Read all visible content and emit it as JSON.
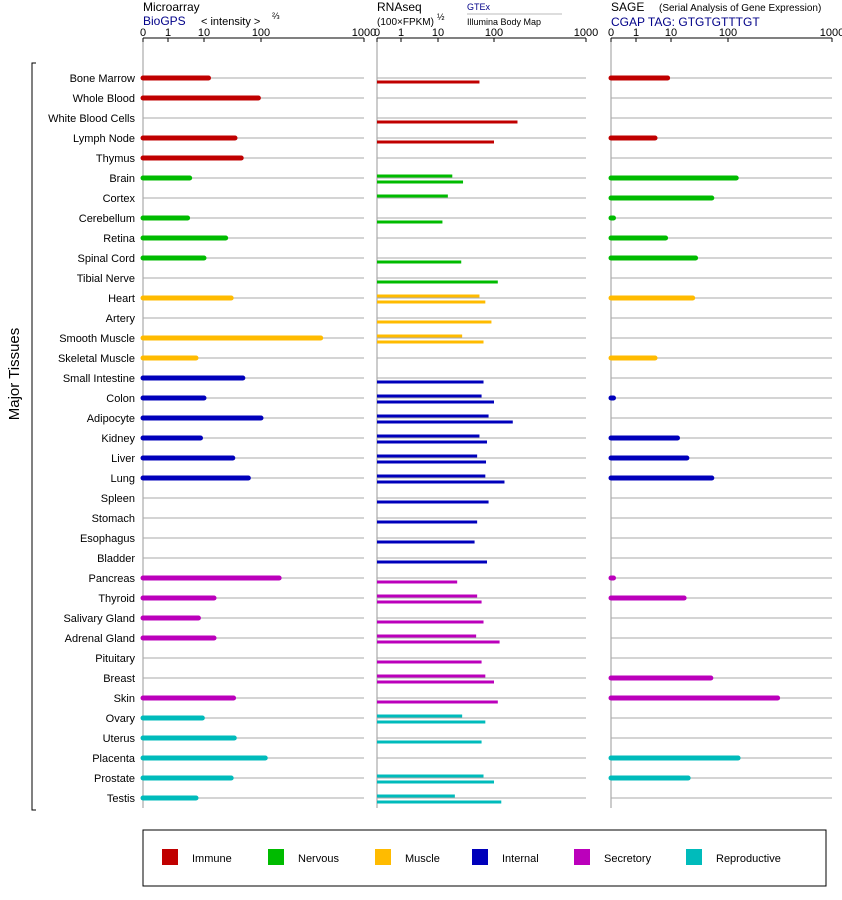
{
  "chart_data": {
    "type": "bar",
    "y_axis_label": "Major Tissues",
    "tissues": [
      {
        "name": "Bone Marrow",
        "group": "immune"
      },
      {
        "name": "Whole Blood",
        "group": "immune"
      },
      {
        "name": "White Blood Cells",
        "group": "immune"
      },
      {
        "name": "Lymph Node",
        "group": "immune"
      },
      {
        "name": "Thymus",
        "group": "immune"
      },
      {
        "name": "Brain",
        "group": "nervous"
      },
      {
        "name": "Cortex",
        "group": "nervous"
      },
      {
        "name": "Cerebellum",
        "group": "nervous"
      },
      {
        "name": "Retina",
        "group": "nervous"
      },
      {
        "name": "Spinal Cord",
        "group": "nervous"
      },
      {
        "name": "Tibial Nerve",
        "group": "nervous"
      },
      {
        "name": "Heart",
        "group": "muscle"
      },
      {
        "name": "Artery",
        "group": "muscle"
      },
      {
        "name": "Smooth Muscle",
        "group": "muscle"
      },
      {
        "name": "Skeletal Muscle",
        "group": "muscle"
      },
      {
        "name": "Small Intestine",
        "group": "internal"
      },
      {
        "name": "Colon",
        "group": "internal"
      },
      {
        "name": "Adipocyte",
        "group": "internal"
      },
      {
        "name": "Kidney",
        "group": "internal"
      },
      {
        "name": "Liver",
        "group": "internal"
      },
      {
        "name": "Lung",
        "group": "internal"
      },
      {
        "name": "Spleen",
        "group": "internal"
      },
      {
        "name": "Stomach",
        "group": "internal"
      },
      {
        "name": "Esophagus",
        "group": "internal"
      },
      {
        "name": "Bladder",
        "group": "internal"
      },
      {
        "name": "Pancreas",
        "group": "secretory"
      },
      {
        "name": "Thyroid",
        "group": "secretory"
      },
      {
        "name": "Salivary Gland",
        "group": "secretory"
      },
      {
        "name": "Adrenal Gland",
        "group": "secretory"
      },
      {
        "name": "Pituitary",
        "group": "secretory"
      },
      {
        "name": "Breast",
        "group": "secretory"
      },
      {
        "name": "Skin",
        "group": "secretory"
      },
      {
        "name": "Ovary",
        "group": "reproductive"
      },
      {
        "name": "Uterus",
        "group": "reproductive"
      },
      {
        "name": "Placenta",
        "group": "reproductive"
      },
      {
        "name": "Prostate",
        "group": "reproductive"
      },
      {
        "name": "Testis",
        "group": "reproductive"
      }
    ],
    "colors": {
      "immune": "#c00000",
      "nervous": "#00bb00",
      "muscle": "#ffbb00",
      "internal": "#0000bb",
      "secretory": "#bb00bb",
      "reproductive": "#00bbbb"
    },
    "legend": [
      {
        "key": "immune",
        "label": "Immune"
      },
      {
        "key": "nervous",
        "label": "Nervous"
      },
      {
        "key": "muscle",
        "label": "Muscle"
      },
      {
        "key": "internal",
        "label": "Internal"
      },
      {
        "key": "secretory",
        "label": "Secretory"
      },
      {
        "key": "reproductive",
        "label": "Reproductive"
      }
    ],
    "panels": [
      {
        "id": "microarray",
        "title": "Microarray",
        "subtitle": "BioGPS",
        "scale_label": "< intensity >",
        "scale_exponent": "⅔",
        "ticks": [
          0,
          1,
          10,
          100,
          1000
        ],
        "xlim": [
          0,
          1000
        ],
        "values": [
          [
            12
          ],
          [
            90
          ],
          [],
          [
            35
          ],
          [
            45
          ],
          [
            4
          ],
          [],
          [
            3.5
          ],
          [
            24
          ],
          [
            10
          ],
          [],
          [
            30
          ],
          [],
          [
            380
          ],
          [
            6
          ],
          [
            48
          ],
          [
            10
          ],
          [
            100
          ],
          [
            8
          ],
          [
            32
          ],
          [
            60
          ],
          [],
          [],
          [],
          [],
          [
            150
          ],
          [
            15
          ],
          [
            7
          ],
          [
            15
          ],
          [],
          [],
          [
            33
          ],
          [
            9
          ],
          [
            34
          ],
          [
            110
          ],
          [
            30
          ],
          [
            6
          ]
        ]
      },
      {
        "id": "rnaseq",
        "title": "RNAseq",
        "subtitle": "(100×FPKM)",
        "scale_exponent": "½",
        "legend_top": "GTEx",
        "legend_bottom": "Illumina Body Map",
        "ticks": [
          0,
          1,
          10,
          100,
          1000
        ],
        "xlim": [
          0,
          1000
        ],
        "values": [
          [
            null,
            55
          ],
          [
            null,
            null
          ],
          [
            null,
            180
          ],
          [
            null,
            100
          ],
          [
            null,
            null
          ],
          [
            18,
            28
          ],
          [
            15,
            null
          ],
          [
            null,
            12
          ],
          [
            null,
            null
          ],
          [
            null,
            26
          ],
          [
            null,
            110
          ],
          [
            55,
            70
          ],
          [
            null,
            90
          ],
          [
            27,
            65
          ],
          [
            null,
            null
          ],
          [
            null,
            65
          ],
          [
            60,
            100
          ],
          [
            80,
            160
          ],
          [
            55,
            75
          ],
          [
            50,
            72
          ],
          [
            70,
            130
          ],
          [
            null,
            80
          ],
          [
            null,
            50
          ],
          [
            null,
            45
          ],
          [
            null,
            75
          ],
          [
            null,
            22
          ],
          [
            50,
            60
          ],
          [
            null,
            65
          ],
          [
            48,
            115
          ],
          [
            null,
            60
          ],
          [
            70,
            100
          ],
          [
            null,
            110
          ],
          [
            27,
            70
          ],
          [
            null,
            60
          ],
          [
            null,
            null
          ],
          [
            65,
            100
          ],
          [
            20,
            120
          ]
        ]
      },
      {
        "id": "sage",
        "title": "SAGE",
        "title_note": "(Serial Analysis of Gene Expression)",
        "subtitle": "CGAP  TAG: GTGTGTTTGT",
        "ticks": [
          0,
          1,
          10,
          100,
          1000
        ],
        "xlim": [
          0,
          1000
        ],
        "values": [
          [
            8
          ],
          [],
          [],
          [
            3.5
          ],
          [],
          [
            120
          ],
          [
            52
          ],
          [
            0.1
          ],
          [
            7
          ],
          [
            27
          ],
          [],
          [
            24
          ],
          [],
          [],
          [
            3.5
          ],
          [],
          [
            0.1
          ],
          [],
          [
            13
          ],
          [
            19
          ],
          [
            52
          ],
          [],
          [],
          [],
          [],
          [
            0.1
          ],
          [
            17
          ],
          [],
          [],
          [],
          [
            50
          ],
          [
            300
          ],
          [],
          [],
          [
            125
          ],
          [
            20
          ],
          []
        ]
      }
    ]
  }
}
